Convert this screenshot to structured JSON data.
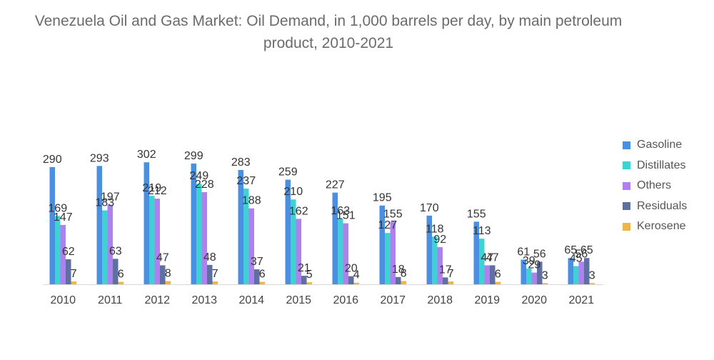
{
  "chart_data": {
    "type": "bar",
    "title": "Venezuela Oil and Gas Market: Oil Demand, in 1,000 barrels per day, by main petroleum product, 2010-2021",
    "categories": [
      "2010",
      "2011",
      "2012",
      "2013",
      "2014",
      "2015",
      "2016",
      "2017",
      "2018",
      "2019",
      "2020",
      "2021"
    ],
    "series": [
      {
        "name": "Gasoline",
        "color": "#4a8fe0",
        "values": [
          290,
          293,
          302,
          299,
          283,
          259,
          227,
          195,
          170,
          155,
          61,
          65
        ]
      },
      {
        "name": "Distillates",
        "color": "#3ed3d3",
        "values": [
          169,
          183,
          219,
          249,
          237,
          210,
          163,
          127,
          118,
          113,
          39,
          45
        ]
      },
      {
        "name": "Others",
        "color": "#b07ff0",
        "values": [
          147,
          197,
          212,
          228,
          188,
          162,
          151,
          155,
          92,
          47,
          29,
          56
        ]
      },
      {
        "name": "Residuals",
        "color": "#5e6fa0",
        "values": [
          62,
          63,
          47,
          48,
          37,
          21,
          20,
          18,
          17,
          47,
          56,
          65
        ]
      },
      {
        "name": "Kerosene",
        "color": "#f0b54a",
        "values": [
          7,
          6,
          8,
          7,
          6,
          5,
          4,
          8,
          7,
          6,
          3,
          3
        ]
      }
    ],
    "xlabel": "",
    "ylabel": "",
    "ylim": [
      0,
      320
    ],
    "grid": false,
    "legend_position": "right",
    "data_labels": true
  }
}
